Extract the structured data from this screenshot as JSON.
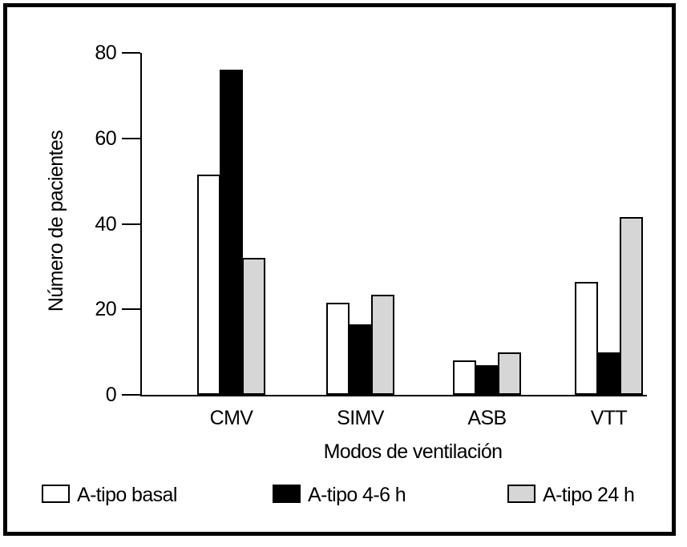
{
  "chart_data": {
    "type": "bar",
    "title": "",
    "categories": [
      "CMV",
      "SIMV",
      "ASB",
      "VTT"
    ],
    "series": [
      {
        "name": "A-tipo basal",
        "fill": "#ffffff",
        "values": [
          51.5,
          21.5,
          8,
          26.5
        ]
      },
      {
        "name": "A-tipo 4-6 h",
        "fill": "#000000",
        "values": [
          76,
          16.5,
          7,
          10
        ]
      },
      {
        "name": "A-tipo 24 h",
        "fill": "#d6d6d6",
        "values": [
          32,
          23.5,
          10,
          41.5
        ]
      }
    ],
    "xlabel": "Modos de ventilación",
    "ylabel": "Número de pacientes",
    "ylim": [
      0,
      80
    ],
    "yticks": [
      0,
      20,
      40,
      60,
      80
    ],
    "grid": false,
    "legend_position": "bottom",
    "bar_outline": "#000000"
  }
}
